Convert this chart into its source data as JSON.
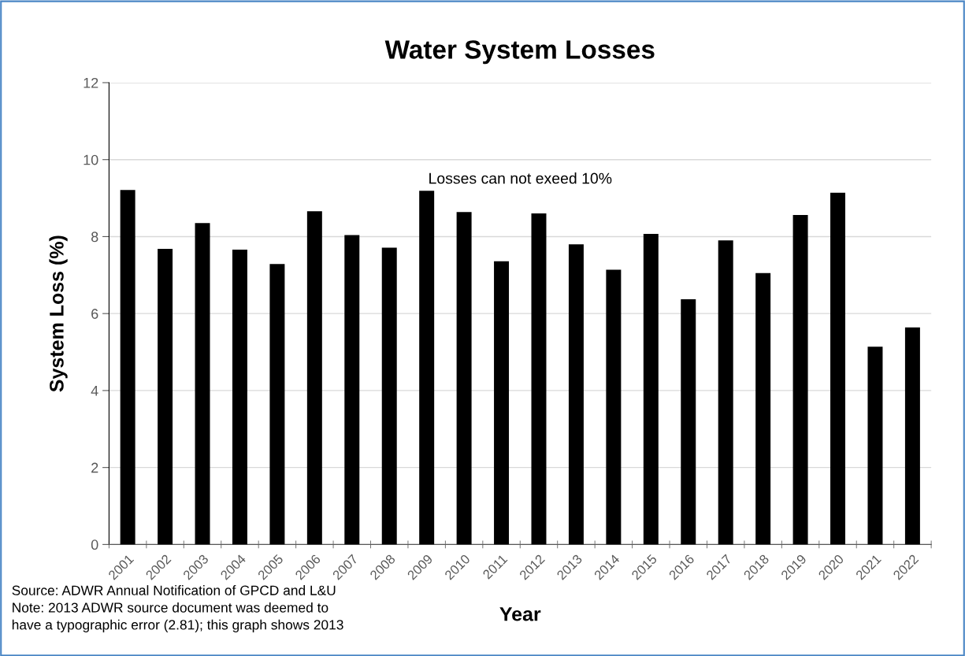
{
  "chart_data": {
    "type": "bar",
    "title": "Water System Losses",
    "xlabel": "Year",
    "ylabel": "System Loss (%)",
    "categories": [
      "2001",
      "2002",
      "2003",
      "2004",
      "2005",
      "2006",
      "2007",
      "2008",
      "2009",
      "2010",
      "2011",
      "2012",
      "2013",
      "2014",
      "2015",
      "2016",
      "2017",
      "2018",
      "2019",
      "2020",
      "2021",
      "2022"
    ],
    "values": [
      9.21,
      7.68,
      8.35,
      7.66,
      7.29,
      8.66,
      8.04,
      7.71,
      9.19,
      8.64,
      7.36,
      8.6,
      7.8,
      7.14,
      8.07,
      6.37,
      7.9,
      7.05,
      8.56,
      9.14,
      5.14,
      5.64
    ],
    "color": "#000000",
    "ylim": [
      0,
      12
    ],
    "yticks": [
      0,
      2,
      4,
      6,
      8,
      10,
      12
    ],
    "grid": "y",
    "annotations": [
      "Losses can not exeed 10%",
      "Source: ADWR Annual Notification of GPCD and L&U",
      "Note: 2013 ADWR source document was deemed to",
      "have a typographic error (2.81); this graph shows 2013"
    ]
  }
}
